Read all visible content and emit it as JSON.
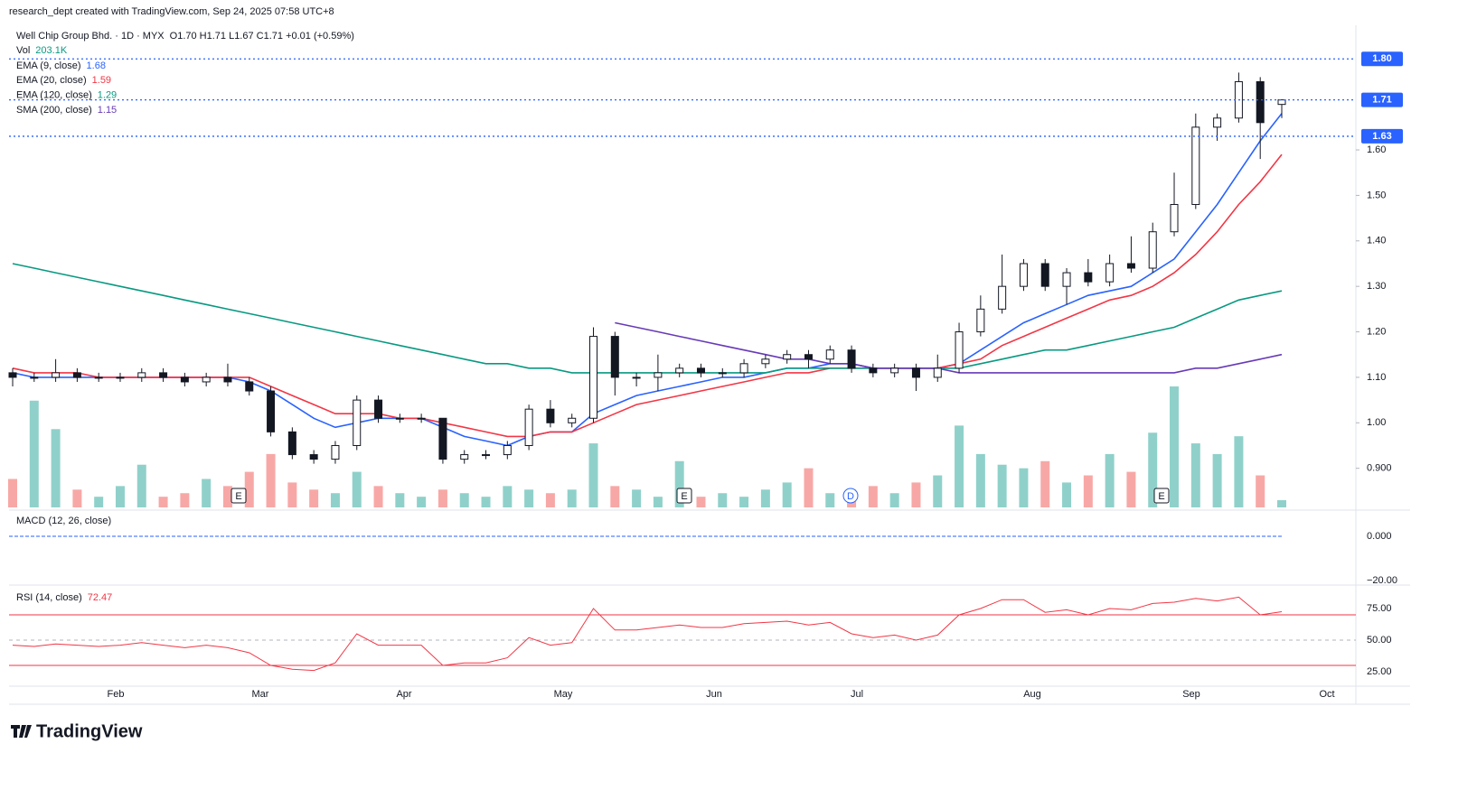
{
  "header": {
    "credit": "research_dept created with TradingView.com, Sep 24, 2025 07:58 UTC+8"
  },
  "footer": {
    "logo": "TradingView"
  },
  "chart_data": {
    "type": "candlestick",
    "title": "Well Chip Group Bhd. · 1D · MYX",
    "subtitle": "O1.70 H1.71 L1.67 C1.71 +0.01 (+0.59%)",
    "candles": {
      "open": [
        1.11,
        1.1,
        1.1,
        1.11,
        1.1,
        1.1,
        1.1,
        1.11,
        1.1,
        1.09,
        1.1,
        1.09,
        1.07,
        0.98,
        0.93,
        0.92,
        0.95,
        1.05,
        1.01,
        1.01,
        1.01,
        0.92,
        0.93,
        0.93,
        0.95,
        1.03,
        1.0,
        1.01,
        1.19,
        1.1,
        1.1,
        1.11,
        1.12,
        1.11,
        1.11,
        1.13,
        1.14,
        1.15,
        1.14,
        1.16,
        1.12,
        1.11,
        1.12,
        1.1,
        1.12,
        1.2,
        1.25,
        1.3,
        1.35,
        1.3,
        1.33,
        1.31,
        1.35,
        1.34,
        1.42,
        1.48,
        1.65,
        1.67,
        1.75,
        1.7
      ],
      "high": [
        1.12,
        1.11,
        1.14,
        1.12,
        1.11,
        1.11,
        1.12,
        1.12,
        1.11,
        1.11,
        1.13,
        1.1,
        1.08,
        0.99,
        0.94,
        0.96,
        1.06,
        1.06,
        1.02,
        1.02,
        1.01,
        0.94,
        0.94,
        0.96,
        1.04,
        1.05,
        1.02,
        1.21,
        1.2,
        1.11,
        1.15,
        1.13,
        1.13,
        1.12,
        1.14,
        1.15,
        1.16,
        1.16,
        1.17,
        1.17,
        1.13,
        1.13,
        1.13,
        1.15,
        1.22,
        1.28,
        1.37,
        1.36,
        1.36,
        1.34,
        1.36,
        1.37,
        1.41,
        1.44,
        1.55,
        1.68,
        1.68,
        1.77,
        1.76,
        1.71
      ],
      "low": [
        1.08,
        1.09,
        1.09,
        1.09,
        1.09,
        1.09,
        1.09,
        1.09,
        1.08,
        1.08,
        1.08,
        1.06,
        0.97,
        0.92,
        0.91,
        0.91,
        0.94,
        1.0,
        1.0,
        1.0,
        0.91,
        0.91,
        0.92,
        0.92,
        0.94,
        0.99,
        0.99,
        1.0,
        1.06,
        1.08,
        1.07,
        1.1,
        1.1,
        1.1,
        1.1,
        1.12,
        1.13,
        1.12,
        1.13,
        1.11,
        1.1,
        1.1,
        1.07,
        1.09,
        1.11,
        1.19,
        1.24,
        1.29,
        1.29,
        1.26,
        1.3,
        1.3,
        1.33,
        1.33,
        1.41,
        1.47,
        1.62,
        1.66,
        1.58,
        1.67
      ],
      "close": [
        1.1,
        1.1,
        1.11,
        1.1,
        1.1,
        1.1,
        1.11,
        1.1,
        1.09,
        1.1,
        1.09,
        1.07,
        0.98,
        0.93,
        0.92,
        0.95,
        1.05,
        1.01,
        1.01,
        1.01,
        0.92,
        0.93,
        0.93,
        0.95,
        1.03,
        1.0,
        1.01,
        1.19,
        1.1,
        1.1,
        1.11,
        1.12,
        1.11,
        1.11,
        1.13,
        1.14,
        1.15,
        1.14,
        1.16,
        1.12,
        1.11,
        1.12,
        1.1,
        1.12,
        1.2,
        1.25,
        1.3,
        1.35,
        1.3,
        1.33,
        1.31,
        1.35,
        1.34,
        1.42,
        1.48,
        1.65,
        1.67,
        1.75,
        1.66,
        1.71
      ],
      "up_color": "#ffffff",
      "down_color": "#131722",
      "border_color": "#131722"
    },
    "ylim": [
      0.814,
      1.874
    ],
    "yticks": [
      {
        "value": 0.9,
        "label": "0.900"
      },
      {
        "value": 1.0,
        "label": "1.00"
      },
      {
        "value": 1.1,
        "label": "1.10"
      },
      {
        "value": 1.2,
        "label": "1.20"
      },
      {
        "value": 1.3,
        "label": "1.30"
      },
      {
        "value": 1.4,
        "label": "1.40"
      },
      {
        "value": 1.5,
        "label": "1.50"
      },
      {
        "value": 1.6,
        "label": "1.60"
      }
    ],
    "price_lines": [
      {
        "value": 1.8,
        "label": "1.80"
      },
      {
        "value": 1.71,
        "label": "1.71"
      },
      {
        "value": 1.63,
        "label": "1.63"
      }
    ],
    "price_line_color": "#2962ff",
    "series": [
      {
        "name": "EMA (9, close)",
        "color": "#2962ff",
        "values": [
          1.11,
          1.1,
          1.1,
          1.1,
          1.1,
          1.1,
          1.1,
          1.1,
          1.1,
          1.1,
          1.1,
          1.09,
          1.07,
          1.04,
          1.01,
          0.99,
          1.0,
          1.01,
          1.01,
          1.01,
          0.99,
          0.97,
          0.96,
          0.95,
          0.97,
          0.98,
          0.98,
          1.02,
          1.04,
          1.06,
          1.07,
          1.08,
          1.09,
          1.1,
          1.1,
          1.11,
          1.12,
          1.12,
          1.13,
          1.13,
          1.12,
          1.12,
          1.12,
          1.12,
          1.13,
          1.16,
          1.19,
          1.22,
          1.24,
          1.26,
          1.28,
          1.29,
          1.3,
          1.33,
          1.36,
          1.42,
          1.48,
          1.55,
          1.62,
          1.68
        ]
      },
      {
        "name": "EMA (20, close)",
        "color": "#f23645",
        "values": [
          1.12,
          1.11,
          1.11,
          1.11,
          1.1,
          1.1,
          1.1,
          1.1,
          1.1,
          1.1,
          1.1,
          1.1,
          1.08,
          1.06,
          1.04,
          1.02,
          1.02,
          1.02,
          1.01,
          1.01,
          1.0,
          0.99,
          0.98,
          0.97,
          0.97,
          0.98,
          0.98,
          1.0,
          1.02,
          1.04,
          1.05,
          1.06,
          1.07,
          1.08,
          1.09,
          1.1,
          1.11,
          1.11,
          1.12,
          1.12,
          1.12,
          1.12,
          1.12,
          1.12,
          1.13,
          1.14,
          1.17,
          1.19,
          1.21,
          1.23,
          1.25,
          1.27,
          1.28,
          1.3,
          1.33,
          1.37,
          1.42,
          1.48,
          1.53,
          1.59
        ]
      },
      {
        "name": "EMA (120, close)",
        "color": "#089981",
        "values": [
          1.35,
          1.34,
          1.33,
          1.32,
          1.31,
          1.3,
          1.29,
          1.28,
          1.27,
          1.26,
          1.25,
          1.24,
          1.23,
          1.22,
          1.21,
          1.2,
          1.19,
          1.18,
          1.17,
          1.16,
          1.15,
          1.14,
          1.13,
          1.13,
          1.12,
          1.12,
          1.11,
          1.11,
          1.11,
          1.11,
          1.11,
          1.11,
          1.11,
          1.11,
          1.11,
          1.11,
          1.12,
          1.12,
          1.12,
          1.12,
          1.12,
          1.12,
          1.12,
          1.12,
          1.12,
          1.13,
          1.14,
          1.15,
          1.16,
          1.16,
          1.17,
          1.18,
          1.19,
          1.2,
          1.21,
          1.23,
          1.25,
          1.27,
          1.28,
          1.29
        ]
      },
      {
        "name": "SMA (200, close)",
        "color": "#673ab7",
        "values": [
          null,
          null,
          null,
          null,
          null,
          null,
          null,
          null,
          null,
          null,
          null,
          null,
          null,
          null,
          null,
          null,
          null,
          null,
          null,
          null,
          null,
          null,
          null,
          null,
          null,
          null,
          null,
          null,
          1.22,
          1.21,
          1.2,
          1.19,
          1.18,
          1.17,
          1.16,
          1.15,
          1.14,
          1.14,
          1.13,
          1.13,
          1.12,
          1.12,
          1.12,
          1.12,
          1.11,
          1.11,
          1.11,
          1.11,
          1.11,
          1.11,
          1.11,
          1.11,
          1.11,
          1.11,
          1.11,
          1.12,
          1.12,
          1.13,
          1.14,
          1.15
        ]
      }
    ],
    "volume": {
      "name": "Vol",
      "last_label": "203.1K",
      "up_color": "#8fd1ca",
      "down_color": "#f7a8a6",
      "values": [
        800,
        3000,
        2200,
        500,
        300,
        600,
        1200,
        300,
        400,
        800,
        600,
        1000,
        1500,
        700,
        500,
        400,
        1000,
        600,
        400,
        300,
        500,
        400,
        300,
        600,
        500,
        400,
        500,
        1800,
        600,
        500,
        300,
        1300,
        300,
        400,
        300,
        500,
        700,
        1100,
        400,
        500,
        600,
        400,
        700,
        900,
        2300,
        1500,
        1200,
        1100,
        1300,
        700,
        900,
        1500,
        1000,
        2100,
        3400,
        1800,
        1500,
        2000,
        900,
        203.1
      ]
    },
    "events": [
      "E",
      "E",
      "D",
      "E"
    ],
    "xtick_labels": [
      "Feb",
      "Mar",
      "Apr",
      "May",
      "Jun",
      "Jul",
      "Aug",
      "Sep",
      "Oct"
    ],
    "macd": {
      "title": "MACD (12, 26, close)",
      "ylim": [
        -22,
        10.6
      ],
      "yticks": [
        {
          "value": 0,
          "label": "0.000"
        },
        {
          "value": -20,
          "label": "−20.00"
        }
      ],
      "color": "#2962ff"
    },
    "rsi": {
      "title": "RSI (14, close)",
      "color": "#f23645",
      "ylim": [
        13.6,
        92.1
      ],
      "yticks": [
        {
          "value": 25,
          "label": "25.00"
        },
        {
          "value": 50,
          "label": "50.00"
        },
        {
          "value": 75,
          "label": "75.00"
        }
      ],
      "bands": [
        70,
        30
      ],
      "values": [
        46,
        45,
        47,
        46,
        45,
        46,
        48,
        46,
        44,
        46,
        44,
        40,
        30,
        27,
        26,
        32,
        55,
        46,
        46,
        46,
        30,
        32,
        32,
        36,
        52,
        46,
        48,
        75,
        58,
        58,
        60,
        62,
        60,
        60,
        63,
        64,
        65,
        62,
        64,
        55,
        52,
        54,
        50,
        54,
        70,
        75,
        82,
        82,
        72,
        74,
        70,
        75,
        74,
        79,
        80,
        83,
        81,
        84,
        70,
        72.47
      ]
    }
  }
}
